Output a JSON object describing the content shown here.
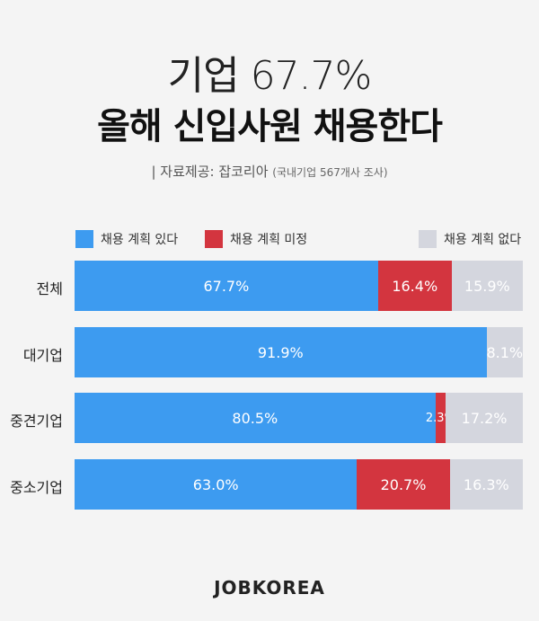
{
  "header": {
    "title_line1": "기업 67.7%",
    "title_line2": "올해 신입사원 채용한다",
    "source_label": "| 자료제공: 잡코리아",
    "source_note": "(국내기업 567개사 조사)"
  },
  "logo": "JOBKOREA",
  "chart_data": {
    "type": "bar",
    "orientation": "horizontal",
    "stacked": true,
    "categories": [
      "전체",
      "대기업",
      "중견기업",
      "중소기업"
    ],
    "series": [
      {
        "name": "채용 계획 있다",
        "values": [
          67.7,
          91.9,
          80.5,
          63.0
        ],
        "labels": [
          "67.7%",
          "91.9%",
          "80.5%",
          "63.0%"
        ],
        "color": "#3d9bf0"
      },
      {
        "name": "채용 계획 미정",
        "values": [
          16.4,
          0,
          2.3,
          20.7
        ],
        "labels": [
          "16.4%",
          "",
          "2.3%",
          "20.7%"
        ],
        "color": "#d3353f"
      },
      {
        "name": "채용 계획 없다",
        "values": [
          15.9,
          8.1,
          17.2,
          16.3
        ],
        "labels": [
          "15.9%",
          "8.1%",
          "17.2%",
          "16.3%"
        ],
        "color": "#d4d6de"
      }
    ],
    "xlim": [
      0,
      100
    ],
    "legend": "top"
  }
}
